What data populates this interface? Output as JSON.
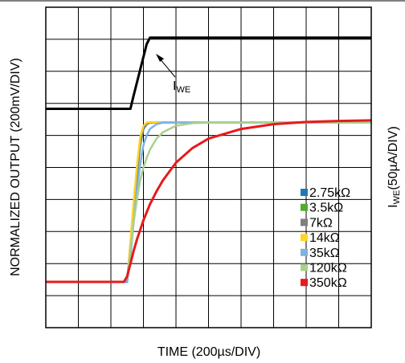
{
  "chart_data": {
    "type": "line",
    "x_label": "TIME (200µs/DIV)",
    "y_label": "NORMALIZED OUTPUT (200mV/DIV)",
    "y2_label": {
      "main": "I",
      "sub": "WE",
      "rest": "(50µA/DIV)"
    },
    "annotation": {
      "main": "I",
      "sub": "WE"
    },
    "xlim": [
      0,
      10
    ],
    "ylim": [
      0,
      10
    ],
    "y2lim": [
      0,
      10
    ],
    "xticks": [
      0,
      1,
      2,
      3,
      4,
      5,
      6,
      7,
      8,
      9,
      10
    ],
    "yticks": [
      0,
      1,
      2,
      3,
      4,
      5,
      6,
      7,
      8,
      9,
      10
    ],
    "grid": true,
    "legend": "right",
    "x": [
      0,
      2.4,
      2.5,
      2.6,
      2.7,
      2.8,
      2.9,
      3.0,
      3.1,
      3.2,
      3.4,
      3.6,
      4.0,
      4.5,
      5,
      6,
      7,
      8,
      9,
      10
    ],
    "series": [
      {
        "axis": "y2",
        "color": "#000000",
        "values": [
          6.83,
          6.83,
          6.83,
          6.83,
          7.25,
          7.65,
          8.05,
          8.45,
          8.85,
          9.05,
          9.05,
          9.05,
          9.05,
          9.05,
          9.05,
          9.05,
          9.05,
          9.05,
          9.05,
          9.05
        ]
      },
      {
        "name": "2.75kΩ",
        "color": "#1f78b8",
        "values": [
          1.43,
          1.43,
          1.43,
          2.5,
          3.7,
          4.8,
          5.7,
          6.2,
          6.35,
          6.4,
          6.4,
          6.4,
          6.4,
          6.4,
          6.4,
          6.4,
          6.4,
          6.4,
          6.4,
          6.4
        ]
      },
      {
        "name": "3.5kΩ",
        "color": "#4fae2c",
        "values": [
          1.43,
          1.43,
          1.45,
          2.55,
          3.75,
          4.85,
          5.75,
          6.22,
          6.36,
          6.4,
          6.4,
          6.4,
          6.4,
          6.4,
          6.4,
          6.4,
          6.4,
          6.4,
          6.4,
          6.4
        ]
      },
      {
        "name": "7kΩ",
        "color": "#808080",
        "values": [
          1.43,
          1.43,
          1.46,
          2.6,
          3.8,
          4.9,
          5.8,
          6.25,
          6.37,
          6.4,
          6.4,
          6.4,
          6.4,
          6.4,
          6.4,
          6.4,
          6.4,
          6.4,
          6.4,
          6.4
        ]
      },
      {
        "name": "14kΩ",
        "color": "#ffd42a",
        "values": [
          1.43,
          1.43,
          1.5,
          2.7,
          3.95,
          5.05,
          5.95,
          6.3,
          6.4,
          6.42,
          6.4,
          6.4,
          6.4,
          6.4,
          6.4,
          6.4,
          6.4,
          6.4,
          6.4,
          6.4
        ]
      },
      {
        "name": "35kΩ",
        "color": "#7fb3e0",
        "values": [
          1.43,
          1.43,
          1.45,
          2.2,
          3.3,
          4.3,
          5.1,
          5.7,
          6.0,
          6.2,
          6.35,
          6.4,
          6.4,
          6.4,
          6.4,
          6.4,
          6.4,
          6.4,
          6.4,
          6.4
        ]
      },
      {
        "name": "120kΩ",
        "color": "#a9d18e",
        "values": [
          1.43,
          1.43,
          1.6,
          2.4,
          3.3,
          4.0,
          4.6,
          5.0,
          5.3,
          5.55,
          5.9,
          6.1,
          6.3,
          6.38,
          6.4,
          6.4,
          6.4,
          6.4,
          6.4,
          6.4
        ]
      },
      {
        "name": "350kΩ",
        "color": "#e8191b",
        "values": [
          1.43,
          1.43,
          1.6,
          2.0,
          2.4,
          2.75,
          3.05,
          3.35,
          3.6,
          3.85,
          4.25,
          4.6,
          5.15,
          5.6,
          5.9,
          6.2,
          6.35,
          6.42,
          6.45,
          6.47
        ]
      }
    ]
  }
}
